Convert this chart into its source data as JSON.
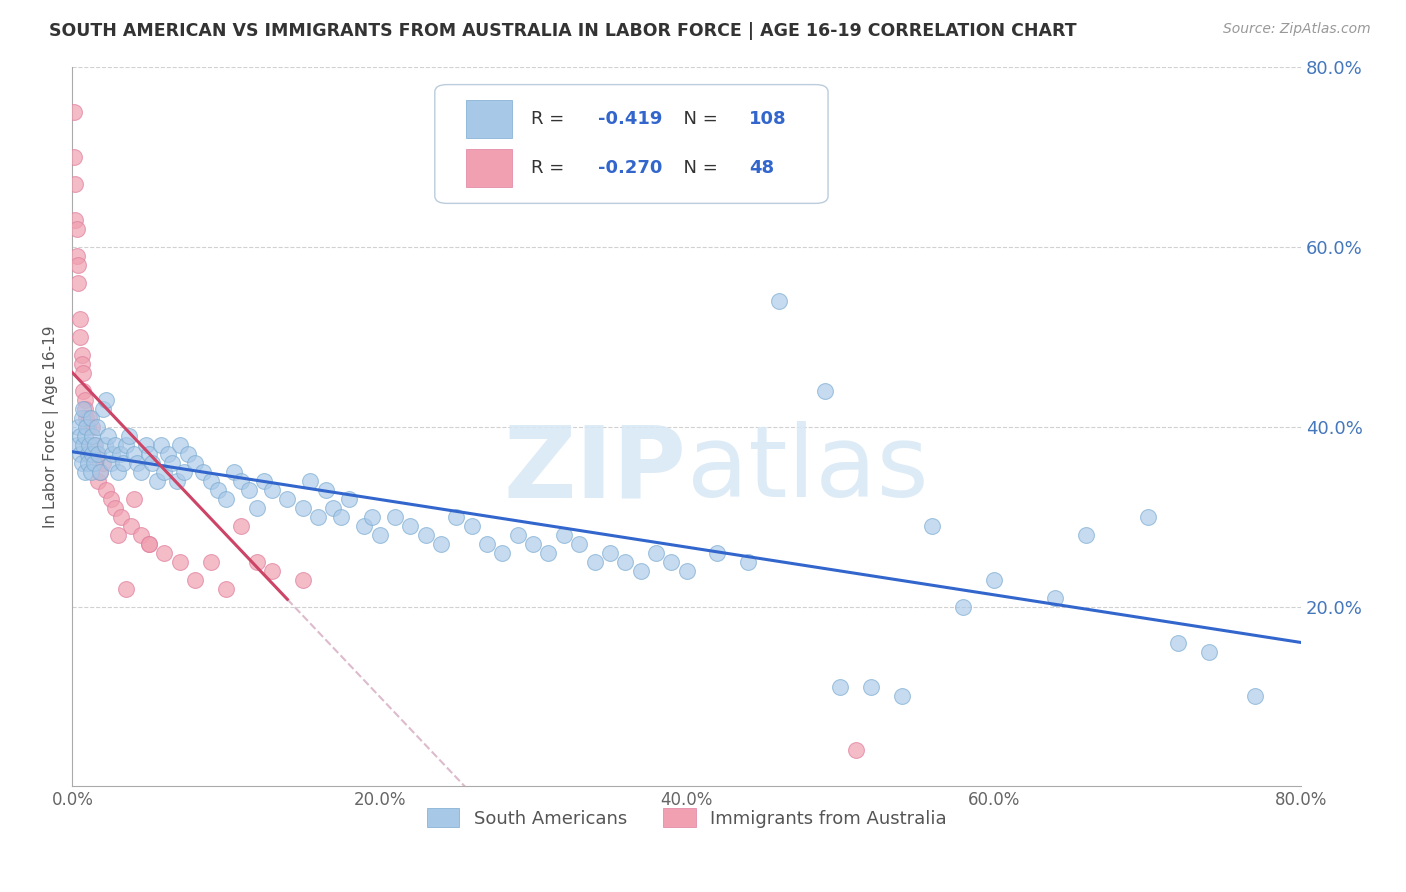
{
  "title": "SOUTH AMERICAN VS IMMIGRANTS FROM AUSTRALIA IN LABOR FORCE | AGE 16-19 CORRELATION CHART",
  "source": "Source: ZipAtlas.com",
  "ylabel": "In Labor Force | Age 16-19",
  "xlim": [
    0.0,
    0.8
  ],
  "ylim": [
    0.0,
    0.8
  ],
  "xtick_vals": [
    0.0,
    0.2,
    0.4,
    0.6,
    0.8
  ],
  "ytick_vals": [
    0.2,
    0.4,
    0.6,
    0.8
  ],
  "blue_color": "#A8C8E8",
  "pink_color": "#F0A0B0",
  "blue_line_color": "#3366CC",
  "pink_line_color": "#CC4466",
  "pink_dash_color": "#DDBBCC",
  "watermark": "ZIPAtlas",
  "legend_blue_R": "-0.419",
  "legend_blue_N": "108",
  "legend_pink_R": "-0.270",
  "legend_pink_N": "48",
  "blue_series_label": "South Americans",
  "pink_series_label": "Immigrants from Australia",
  "blue_intercept": 0.372,
  "blue_slope": -0.265,
  "pink_intercept": 0.46,
  "pink_slope": -1.8,
  "blue_x": [
    0.003,
    0.004,
    0.005,
    0.005,
    0.006,
    0.006,
    0.007,
    0.007,
    0.008,
    0.008,
    0.009,
    0.01,
    0.01,
    0.011,
    0.012,
    0.012,
    0.013,
    0.013,
    0.014,
    0.015,
    0.016,
    0.017,
    0.018,
    0.02,
    0.021,
    0.022,
    0.023,
    0.025,
    0.026,
    0.028,
    0.03,
    0.031,
    0.033,
    0.035,
    0.037,
    0.04,
    0.042,
    0.045,
    0.048,
    0.05,
    0.052,
    0.055,
    0.058,
    0.06,
    0.062,
    0.065,
    0.068,
    0.07,
    0.073,
    0.075,
    0.08,
    0.085,
    0.09,
    0.095,
    0.1,
    0.105,
    0.11,
    0.115,
    0.12,
    0.125,
    0.13,
    0.14,
    0.15,
    0.155,
    0.16,
    0.165,
    0.17,
    0.175,
    0.18,
    0.19,
    0.195,
    0.2,
    0.21,
    0.22,
    0.23,
    0.24,
    0.25,
    0.26,
    0.27,
    0.28,
    0.29,
    0.3,
    0.31,
    0.32,
    0.33,
    0.34,
    0.35,
    0.36,
    0.37,
    0.38,
    0.39,
    0.4,
    0.42,
    0.44,
    0.46,
    0.49,
    0.5,
    0.52,
    0.54,
    0.56,
    0.58,
    0.6,
    0.64,
    0.66,
    0.7,
    0.72,
    0.74,
    0.77
  ],
  "blue_y": [
    0.38,
    0.4,
    0.39,
    0.37,
    0.41,
    0.36,
    0.38,
    0.42,
    0.35,
    0.39,
    0.4,
    0.37,
    0.36,
    0.38,
    0.41,
    0.35,
    0.37,
    0.39,
    0.36,
    0.38,
    0.4,
    0.37,
    0.35,
    0.42,
    0.38,
    0.43,
    0.39,
    0.36,
    0.37,
    0.38,
    0.35,
    0.37,
    0.36,
    0.38,
    0.39,
    0.37,
    0.36,
    0.35,
    0.38,
    0.37,
    0.36,
    0.34,
    0.38,
    0.35,
    0.37,
    0.36,
    0.34,
    0.38,
    0.35,
    0.37,
    0.36,
    0.35,
    0.34,
    0.33,
    0.32,
    0.35,
    0.34,
    0.33,
    0.31,
    0.34,
    0.33,
    0.32,
    0.31,
    0.34,
    0.3,
    0.33,
    0.31,
    0.3,
    0.32,
    0.29,
    0.3,
    0.28,
    0.3,
    0.29,
    0.28,
    0.27,
    0.3,
    0.29,
    0.27,
    0.26,
    0.28,
    0.27,
    0.26,
    0.28,
    0.27,
    0.25,
    0.26,
    0.25,
    0.24,
    0.26,
    0.25,
    0.24,
    0.26,
    0.25,
    0.54,
    0.44,
    0.11,
    0.11,
    0.1,
    0.29,
    0.2,
    0.23,
    0.21,
    0.28,
    0.3,
    0.16,
    0.15,
    0.1
  ],
  "pink_x": [
    0.001,
    0.001,
    0.002,
    0.002,
    0.003,
    0.003,
    0.004,
    0.004,
    0.005,
    0.005,
    0.006,
    0.006,
    0.007,
    0.007,
    0.008,
    0.008,
    0.009,
    0.01,
    0.011,
    0.012,
    0.013,
    0.014,
    0.015,
    0.016,
    0.017,
    0.018,
    0.02,
    0.022,
    0.025,
    0.028,
    0.032,
    0.038,
    0.04,
    0.045,
    0.05,
    0.06,
    0.07,
    0.08,
    0.09,
    0.1,
    0.11,
    0.12,
    0.13,
    0.15,
    0.03,
    0.035,
    0.05,
    0.51
  ],
  "pink_y": [
    0.75,
    0.7,
    0.67,
    0.63,
    0.62,
    0.59,
    0.58,
    0.56,
    0.52,
    0.5,
    0.48,
    0.47,
    0.46,
    0.44,
    0.43,
    0.42,
    0.41,
    0.4,
    0.41,
    0.37,
    0.4,
    0.38,
    0.36,
    0.37,
    0.34,
    0.35,
    0.36,
    0.33,
    0.32,
    0.31,
    0.3,
    0.29,
    0.32,
    0.28,
    0.27,
    0.26,
    0.25,
    0.23,
    0.25,
    0.22,
    0.29,
    0.25,
    0.24,
    0.23,
    0.28,
    0.22,
    0.27,
    0.04
  ]
}
